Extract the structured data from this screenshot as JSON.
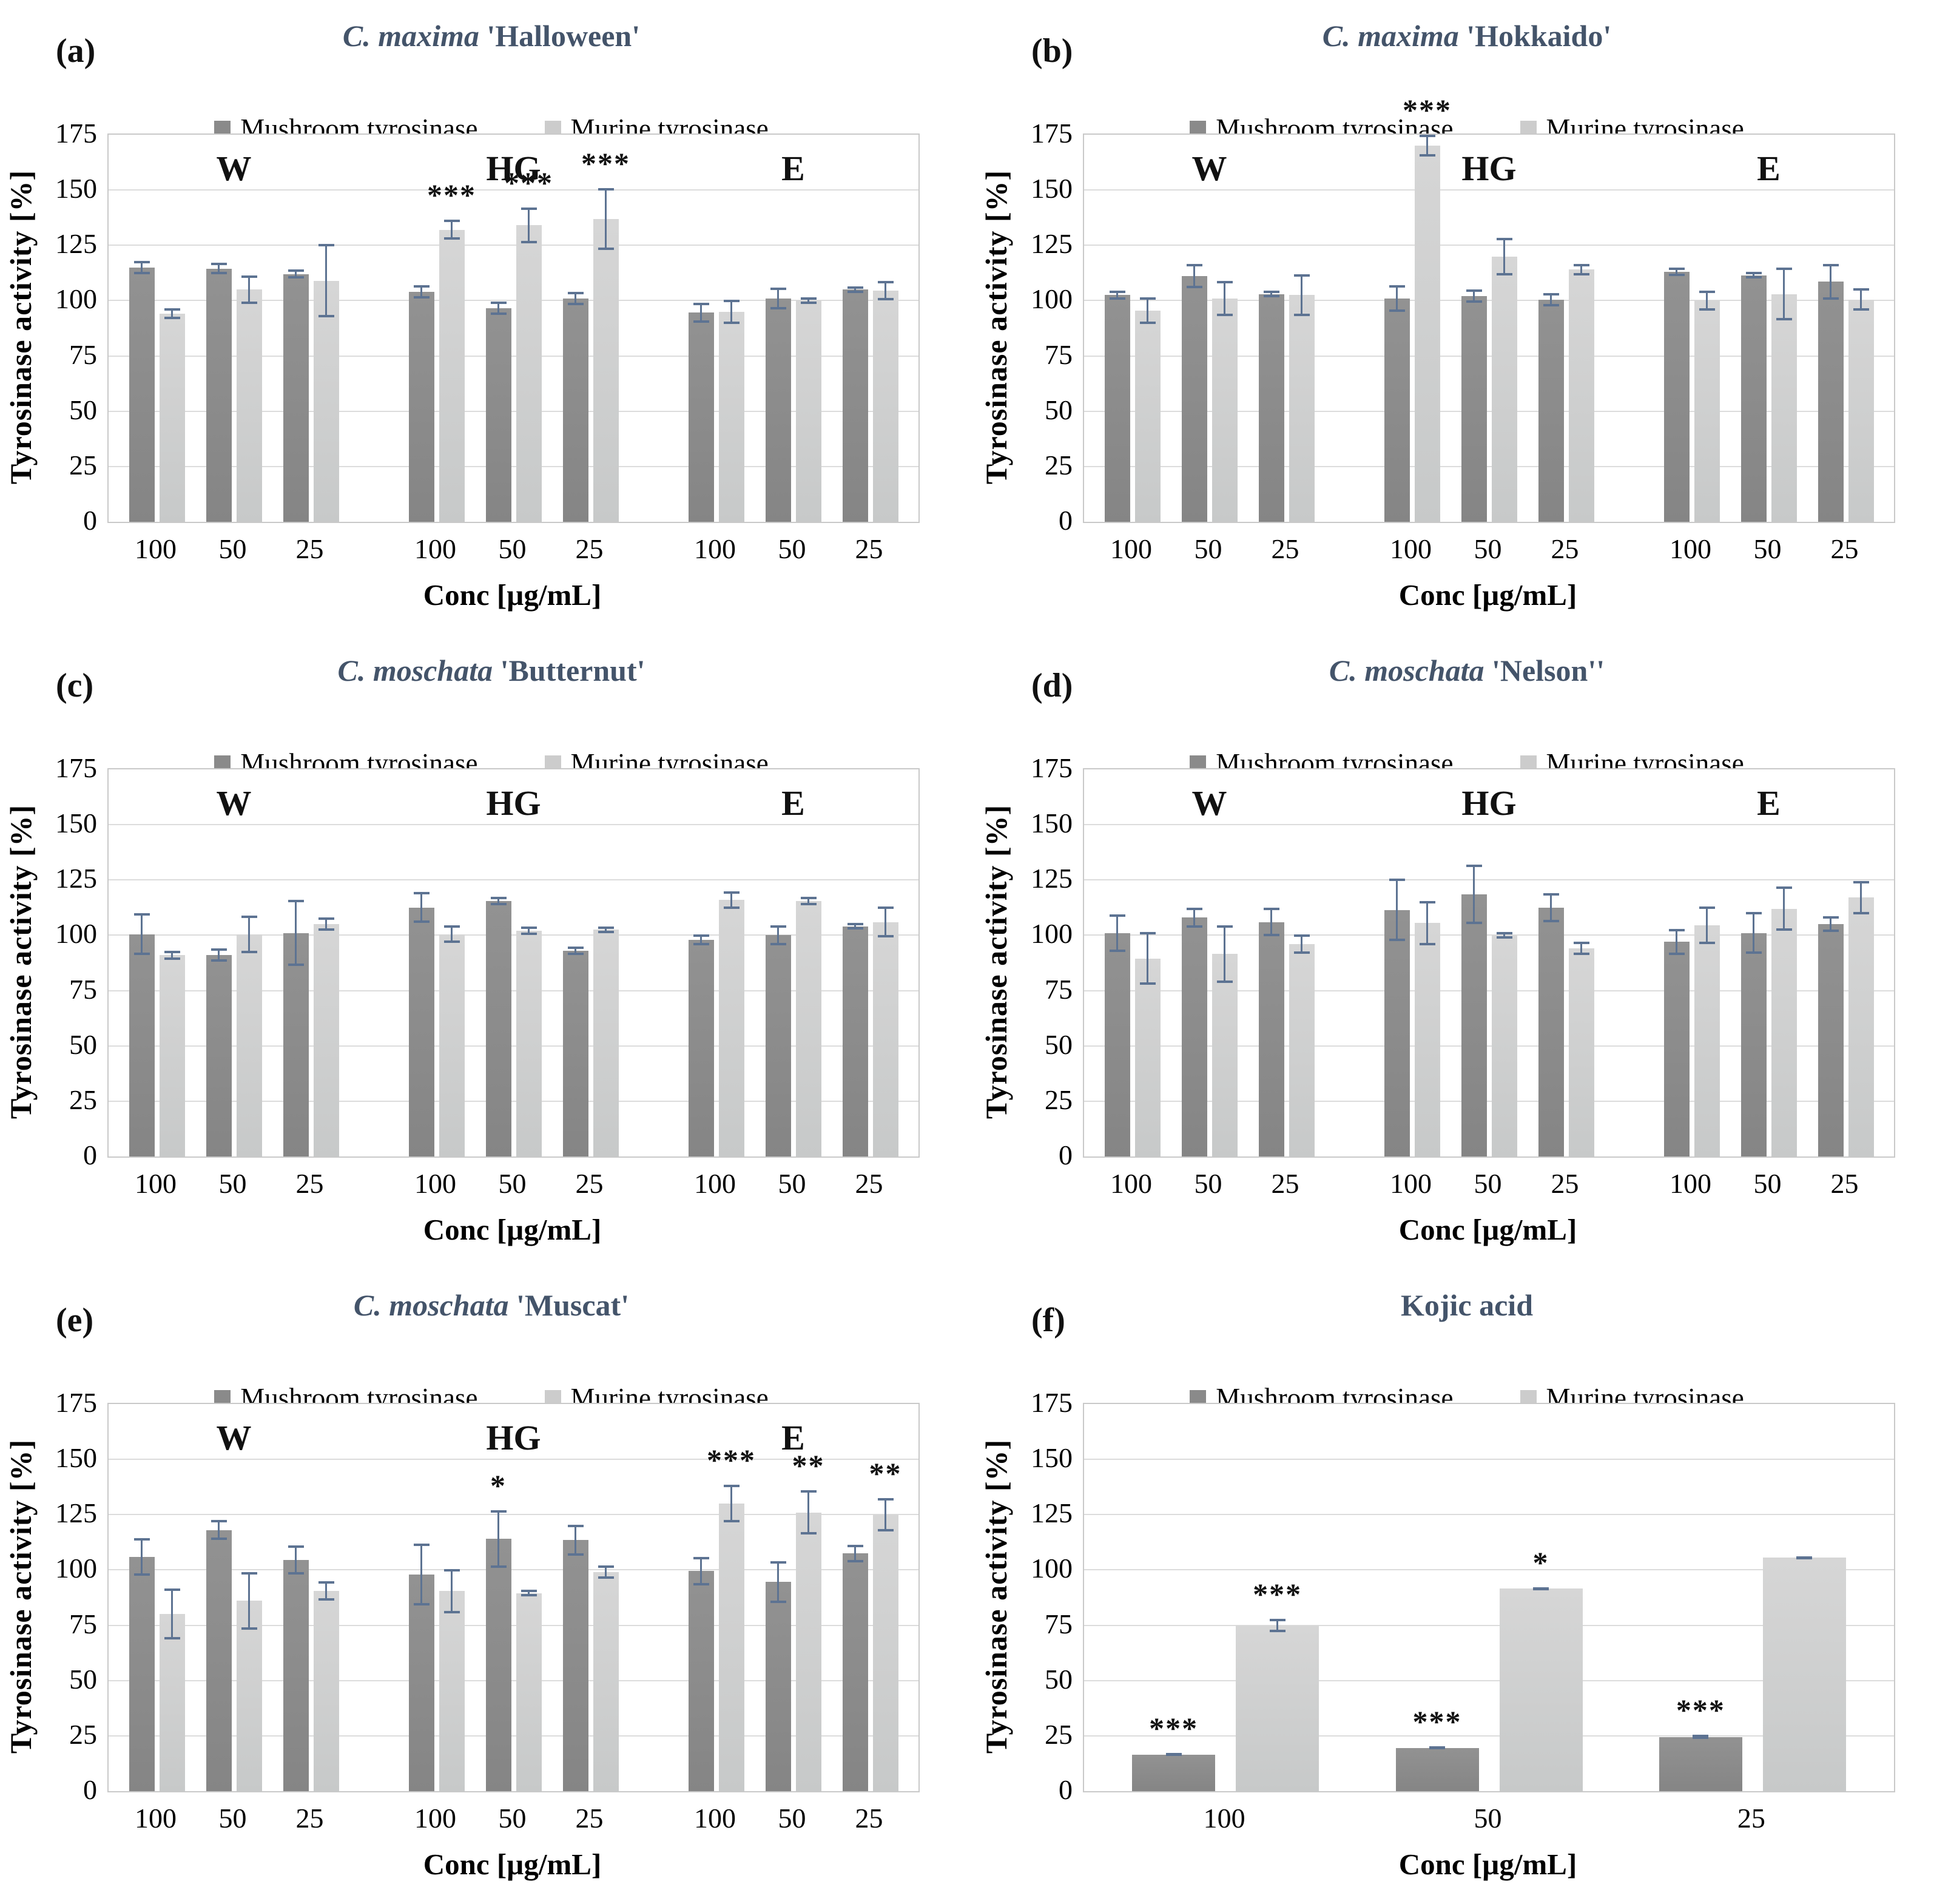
{
  "figure": {
    "ylabel": "Tyrosinase activity [%]",
    "xlabel": "Conc [µg/mL]",
    "legend": [
      {
        "name": "Mushroom tyrosinase",
        "color": "#8a8a8a"
      },
      {
        "name": "Murine tyrosinase",
        "color": "#cccccc"
      }
    ],
    "colors": {
      "title": "#44546A",
      "error_bar": "#5d7392",
      "gridline": "#dcdcdc",
      "plot_border": "#c9c9c9",
      "series_mushroom": "#8a8a8a",
      "series_murine": "#cccccc"
    }
  },
  "chart_data": [
    {
      "type": "bar",
      "panel_letter": "(a)",
      "title": "C. maxima 'Halloween'",
      "title_italic_part": "C. maxima",
      "title_plain_part": " 'Halloween'",
      "group_labels": [
        "W",
        "HG",
        "E"
      ],
      "categories": [
        "100",
        "50",
        "25",
        "100",
        "50",
        "25",
        "100",
        "50",
        "25"
      ],
      "xlabel": "Conc [µg/mL]",
      "ylabel": "Tyrosinase activity [%]",
      "ylim": [
        0,
        175
      ],
      "ytick_step": 25,
      "series": [
        {
          "name": "Mushroom tyrosinase",
          "values": [
            115,
            114.5,
            112,
            104,
            96.5,
            101,
            94.5,
            101,
            105
          ],
          "errors": [
            3,
            2.5,
            2,
            3,
            3,
            3,
            4.5,
            5,
            1.5
          ],
          "sig": [
            "",
            "",
            "",
            "",
            "",
            "",
            "",
            "",
            ""
          ]
        },
        {
          "name": "Murine tyrosinase",
          "values": [
            94,
            105,
            109,
            132,
            134,
            137,
            95,
            100,
            104.5
          ],
          "errors": [
            2.5,
            6.5,
            16.5,
            4.5,
            8,
            14,
            5.5,
            1.5,
            4.5
          ],
          "sig": [
            "",
            "",
            "",
            "***",
            "***",
            "***",
            "",
            "",
            ""
          ]
        }
      ]
    },
    {
      "type": "bar",
      "panel_letter": "(b)",
      "title": "C. maxima 'Hokkaido'",
      "title_italic_part": "C. maxima",
      "title_plain_part": " 'Hokkaido'",
      "group_labels": [
        "W",
        "HG",
        "E"
      ],
      "categories": [
        "100",
        "50",
        "25",
        "100",
        "50",
        "25",
        "100",
        "50",
        "25"
      ],
      "xlabel": "Conc [µg/mL]",
      "ylabel": "Tyrosinase activity [%]",
      "ylim": [
        0,
        175
      ],
      "ytick_step": 25,
      "series": [
        {
          "name": "Mushroom tyrosinase",
          "values": [
            102.5,
            111,
            103,
            101,
            102,
            100.5,
            113,
            111.5,
            108.5
          ],
          "errors": [
            2,
            5.5,
            1.5,
            6,
            3,
            3,
            2,
            1.5,
            8
          ],
          "sig": [
            "",
            "",
            "",
            "",
            "",
            "",
            "",
            "",
            ""
          ]
        },
        {
          "name": "Murine tyrosinase",
          "values": [
            95.5,
            101,
            102.5,
            170,
            120,
            114,
            100,
            103,
            100.5
          ],
          "errors": [
            6,
            8,
            9.5,
            5,
            8.5,
            2.5,
            4.5,
            12,
            5
          ],
          "sig": [
            "",
            "",
            "",
            "***",
            "",
            "",
            "",
            "",
            ""
          ]
        }
      ]
    },
    {
      "type": "bar",
      "panel_letter": "(c)",
      "title": "C. moschata 'Butternut'",
      "title_italic_part": "C. moschata",
      "title_plain_part": " 'Butternut'",
      "group_labels": [
        "W",
        "HG",
        "E"
      ],
      "categories": [
        "100",
        "50",
        "25",
        "100",
        "50",
        "25",
        "100",
        "50",
        "25"
      ],
      "xlabel": "Conc [µg/mL]",
      "ylabel": "Tyrosinase activity [%]",
      "ylim": [
        0,
        175
      ],
      "ytick_step": 25,
      "series": [
        {
          "name": "Mushroom tyrosinase",
          "values": [
            100.5,
            91,
            101,
            112.5,
            115.5,
            93,
            98,
            100,
            104
          ],
          "errors": [
            9.5,
            3,
            15,
            7,
            2,
            2,
            2.5,
            4.5,
            1.5
          ],
          "sig": [
            "",
            "",
            "",
            "",
            "",
            "",
            "",
            "",
            ""
          ]
        },
        {
          "name": "Murine tyrosinase",
          "values": [
            91,
            100.5,
            105,
            100.5,
            102,
            102.5,
            116,
            115.5,
            106
          ],
          "errors": [
            2,
            8.5,
            3,
            4,
            2,
            1.5,
            4,
            2,
            7
          ],
          "sig": [
            "",
            "",
            "",
            "",
            "",
            "",
            "",
            "",
            ""
          ]
        }
      ]
    },
    {
      "type": "bar",
      "panel_letter": "(d)",
      "title": "C. moschata 'Nelson''",
      "title_italic_part": "C. moschata",
      "title_plain_part": " 'Nelson''",
      "group_labels": [
        "W",
        "HG",
        "E"
      ],
      "categories": [
        "100",
        "50",
        "25",
        "100",
        "50",
        "25",
        "100",
        "50",
        "25"
      ],
      "xlabel": "Conc [µg/mL]",
      "ylabel": "Tyrosinase activity [%]",
      "ylim": [
        0,
        175
      ],
      "ytick_step": 25,
      "series": [
        {
          "name": "Mushroom tyrosinase",
          "values": [
            101,
            108,
            106,
            111.5,
            118.5,
            112.5,
            97,
            101,
            105
          ],
          "errors": [
            8.5,
            4.5,
            6.5,
            14,
            13.5,
            6.5,
            6,
            9.5,
            3.5
          ],
          "sig": [
            "",
            "",
            "",
            "",
            "",
            "",
            "",
            "",
            ""
          ]
        },
        {
          "name": "Murine tyrosinase",
          "values": [
            89.5,
            91.5,
            96,
            105.5,
            100,
            94,
            104.5,
            112,
            117
          ],
          "errors": [
            12,
            13,
            4.5,
            10,
            1.5,
            3,
            8.5,
            10,
            7.5
          ],
          "sig": [
            "",
            "",
            "",
            "",
            "",
            "",
            "",
            "",
            ""
          ]
        }
      ]
    },
    {
      "type": "bar",
      "panel_letter": "(e)",
      "title": "C. moschata 'Muscat'",
      "title_italic_part": "C. moschata",
      "title_plain_part": " 'Muscat'",
      "group_labels": [
        "W",
        "HG",
        "E"
      ],
      "categories": [
        "100",
        "50",
        "25",
        "100",
        "50",
        "25",
        "100",
        "50",
        "25"
      ],
      "xlabel": "Conc [µg/mL]",
      "ylabel": "Tyrosinase activity [%]",
      "ylim": [
        0,
        175
      ],
      "ytick_step": 25,
      "series": [
        {
          "name": "Mushroom tyrosinase",
          "values": [
            106,
            118,
            104.5,
            98,
            114,
            113.5,
            99.5,
            94.5,
            107.5
          ],
          "errors": [
            8.5,
            4.5,
            6.5,
            14,
            13,
            7,
            6.5,
            9.5,
            4
          ],
          "sig": [
            "",
            "",
            "",
            "",
            "*",
            "",
            "",
            "",
            ""
          ]
        },
        {
          "name": "Murine tyrosinase",
          "values": [
            80,
            86,
            90.5,
            90.5,
            89.5,
            99,
            130,
            126,
            125
          ],
          "errors": [
            11.5,
            13,
            4.5,
            10,
            1.5,
            3,
            8.5,
            10,
            7.5
          ],
          "sig": [
            "",
            "",
            "",
            "",
            "",
            "",
            "***",
            "**",
            "**"
          ]
        }
      ]
    },
    {
      "type": "bar",
      "panel_letter": "(f)",
      "title": "Kojic acid",
      "title_italic_part": "",
      "title_plain_part": "Kojic acid",
      "group_labels": [],
      "categories": [
        "100",
        "50",
        "25"
      ],
      "xlabel": "Conc [µg/mL]",
      "ylabel": "Tyrosinase activity [%]",
      "ylim": [
        0,
        175
      ],
      "ytick_step": 25,
      "series": [
        {
          "name": "Mushroom tyrosinase",
          "values": [
            16.5,
            19.5,
            24.5
          ],
          "errors": [
            0.7,
            0.7,
            0.9
          ],
          "sig": [
            "***",
            "***",
            "***"
          ]
        },
        {
          "name": "Murine tyrosinase",
          "values": [
            75,
            91.5,
            105.5
          ],
          "errors": [
            3,
            0.8,
            0.7
          ],
          "sig": [
            "***",
            "*",
            ""
          ]
        }
      ]
    }
  ]
}
